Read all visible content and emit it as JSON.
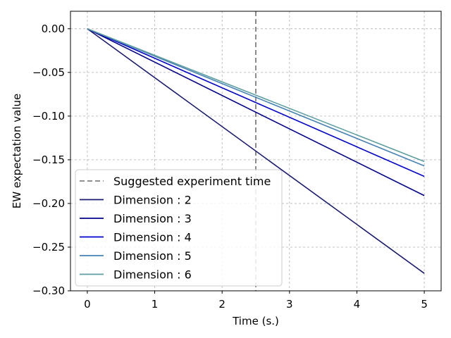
{
  "chart_data": {
    "type": "line",
    "title": "",
    "xlabel": "Time (s.)",
    "ylabel": "EW expectation value",
    "xlim": [
      -0.25,
      5.25
    ],
    "ylim": [
      -0.3,
      0.02
    ],
    "x_ticks": [
      0,
      1,
      2,
      3,
      4,
      5
    ],
    "x_tick_labels": [
      "0",
      "1",
      "2",
      "3",
      "4",
      "5"
    ],
    "y_ticks": [
      0.0,
      -0.05,
      -0.1,
      -0.15,
      -0.2,
      -0.25,
      -0.3
    ],
    "y_tick_labels": [
      "0.00",
      "−0.05",
      "−0.10",
      "−0.15",
      "−0.20",
      "−0.25",
      "−0.30"
    ],
    "grid": true,
    "grid_style": "dashed",
    "legend_position": "lower-left",
    "vline": {
      "x": 2.5,
      "label": "Suggested experiment time",
      "color": "#808080",
      "style": "dashed"
    },
    "series": [
      {
        "name": "Dimension : 2",
        "color": "#191970",
        "x": [
          0,
          5
        ],
        "y": [
          0.0,
          -0.28
        ]
      },
      {
        "name": "Dimension : 3",
        "color": "#00008B",
        "x": [
          0,
          5
        ],
        "y": [
          0.0,
          -0.191
        ]
      },
      {
        "name": "Dimension : 4",
        "color": "#0000CD",
        "x": [
          0,
          5
        ],
        "y": [
          0.0,
          -0.169
        ]
      },
      {
        "name": "Dimension : 5",
        "color": "#4682B4",
        "x": [
          0,
          5
        ],
        "y": [
          0.0,
          -0.157
        ]
      },
      {
        "name": "Dimension : 6",
        "color": "#5F9EA0",
        "x": [
          0,
          5
        ],
        "y": [
          0.0,
          -0.152
        ]
      }
    ]
  }
}
